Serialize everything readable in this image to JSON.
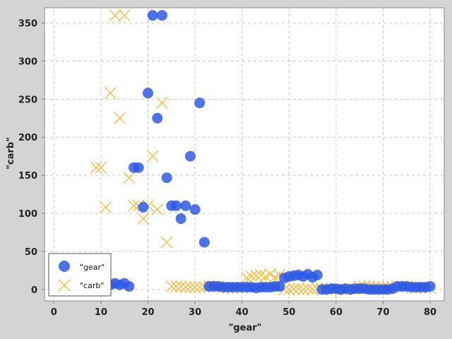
{
  "chart_data": {
    "type": "scatter",
    "xlabel": "\"gear\"",
    "ylabel": "\"carb\"",
    "xlim": [
      -2,
      83
    ],
    "ylim": [
      -15,
      370
    ],
    "xticks": [
      0,
      10,
      20,
      30,
      40,
      50,
      60,
      70,
      80
    ],
    "yticks": [
      0,
      50,
      100,
      150,
      200,
      250,
      300,
      350
    ],
    "grid": true,
    "legend_position": "bottom-left",
    "series": [
      {
        "name": "\"gear\"",
        "marker": "circle",
        "color": "#2d5be3",
        "points": [
          [
            9,
            4
          ],
          [
            10,
            4
          ],
          [
            11,
            4
          ],
          [
            12,
            6
          ],
          [
            13,
            8
          ],
          [
            14,
            6
          ],
          [
            15,
            8
          ],
          [
            16,
            4
          ],
          [
            17,
            160
          ],
          [
            18,
            160
          ],
          [
            19,
            108
          ],
          [
            20,
            258
          ],
          [
            21,
            360
          ],
          [
            22,
            225
          ],
          [
            23,
            360
          ],
          [
            24,
            146.7
          ],
          [
            25,
            110
          ],
          [
            26,
            110
          ],
          [
            27,
            93
          ],
          [
            28,
            110
          ],
          [
            29,
            175
          ],
          [
            30,
            105
          ],
          [
            31,
            245
          ],
          [
            32,
            62
          ],
          [
            33,
            4
          ],
          [
            34,
            4
          ],
          [
            35,
            4
          ],
          [
            36,
            3
          ],
          [
            37,
            3
          ],
          [
            38,
            3
          ],
          [
            39,
            3
          ],
          [
            40,
            3
          ],
          [
            41,
            3
          ],
          [
            42,
            3
          ],
          [
            43,
            2
          ],
          [
            44,
            3
          ],
          [
            45,
            3
          ],
          [
            46,
            3
          ],
          [
            47,
            4
          ],
          [
            48,
            4
          ],
          [
            49,
            15
          ],
          [
            50,
            17
          ],
          [
            51,
            18
          ],
          [
            52,
            19
          ],
          [
            53,
            17
          ],
          [
            54,
            20
          ],
          [
            55,
            16
          ],
          [
            56,
            19
          ],
          [
            57,
            0
          ],
          [
            58,
            0
          ],
          [
            59,
            1
          ],
          [
            60,
            1
          ],
          [
            61,
            0
          ],
          [
            62,
            1
          ],
          [
            63,
            0
          ],
          [
            64,
            1
          ],
          [
            65,
            1
          ],
          [
            66,
            1
          ],
          [
            67,
            0
          ],
          [
            68,
            0
          ],
          [
            69,
            0
          ],
          [
            70,
            0
          ],
          [
            71,
            0
          ],
          [
            72,
            1
          ],
          [
            73,
            4
          ],
          [
            74,
            4
          ],
          [
            75,
            4
          ],
          [
            76,
            3
          ],
          [
            77,
            3
          ],
          [
            78,
            3
          ],
          [
            79,
            3
          ],
          [
            80,
            4
          ]
        ]
      },
      {
        "name": "\"carb\"",
        "marker": "x",
        "color": "#f5c04a",
        "points": [
          [
            9,
            160
          ],
          [
            10,
            160
          ],
          [
            11,
            108
          ],
          [
            12,
            258
          ],
          [
            13,
            360
          ],
          [
            14,
            225
          ],
          [
            15,
            360
          ],
          [
            16,
            146.7
          ],
          [
            17,
            110
          ],
          [
            18,
            110
          ],
          [
            19,
            93
          ],
          [
            20,
            110
          ],
          [
            21,
            175
          ],
          [
            22,
            105
          ],
          [
            23,
            245
          ],
          [
            24,
            62
          ],
          [
            25,
            4
          ],
          [
            26,
            4
          ],
          [
            27,
            4
          ],
          [
            28,
            3
          ],
          [
            29,
            3
          ],
          [
            30,
            3
          ],
          [
            31,
            3
          ],
          [
            32,
            3
          ],
          [
            33,
            4
          ],
          [
            34,
            4
          ],
          [
            35,
            4
          ],
          [
            36,
            2
          ],
          [
            37,
            2
          ],
          [
            38,
            2
          ],
          [
            39,
            2
          ],
          [
            40,
            2
          ],
          [
            41,
            15
          ],
          [
            42,
            17
          ],
          [
            43,
            18
          ],
          [
            44,
            19
          ],
          [
            45,
            17
          ],
          [
            46,
            20
          ],
          [
            47,
            16
          ],
          [
            48,
            19
          ],
          [
            49,
            0
          ],
          [
            50,
            0
          ],
          [
            51,
            1
          ],
          [
            52,
            1
          ],
          [
            53,
            0
          ],
          [
            54,
            1
          ],
          [
            55,
            0
          ],
          [
            56,
            1
          ],
          [
            57,
            1
          ],
          [
            58,
            1
          ],
          [
            59,
            0
          ],
          [
            60,
            0
          ],
          [
            61,
            0
          ],
          [
            62,
            0
          ],
          [
            63,
            1
          ],
          [
            64,
            1
          ],
          [
            65,
            4
          ],
          [
            66,
            4
          ],
          [
            67,
            4
          ],
          [
            68,
            3
          ],
          [
            69,
            3
          ],
          [
            70,
            3
          ],
          [
            71,
            3
          ],
          [
            72,
            3
          ],
          [
            73,
            4
          ],
          [
            74,
            4
          ],
          [
            75,
            4
          ],
          [
            76,
            2
          ],
          [
            77,
            2
          ],
          [
            78,
            2
          ],
          [
            79,
            2
          ],
          [
            80,
            2
          ]
        ]
      }
    ]
  }
}
